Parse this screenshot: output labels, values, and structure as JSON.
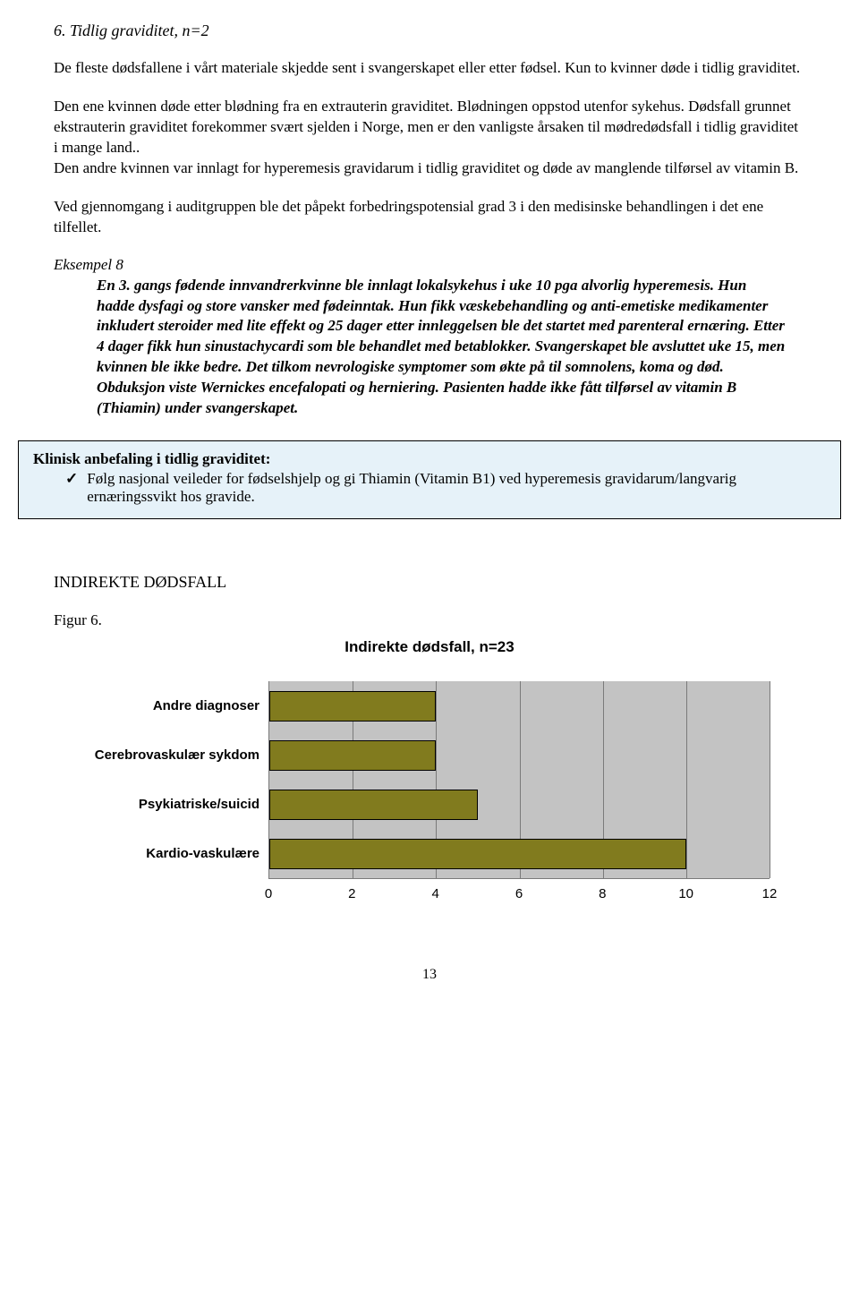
{
  "section_heading": "6. Tidlig graviditet, n=2",
  "para1": "De fleste dødsfallene i vårt materiale skjedde sent i svangerskapet eller etter fødsel. Kun to kvinner døde i tidlig graviditet.",
  "para2": "Den ene kvinnen døde etter blødning fra en extrauterin graviditet. Blødningen oppstod utenfor sykehus. Dødsfall grunnet ekstrauterin graviditet forekommer svært sjelden i Norge, men er den vanligste årsaken til mødredødsfall i tidlig graviditet i mange land..",
  "para3": "Den andre kvinnen var innlagt for hyperemesis gravidarum i tidlig graviditet og døde av manglende tilførsel av vitamin B.",
  "para4": "Ved gjennomgang i auditgruppen ble det påpekt forbedringspotensial grad 3 i den medisinske behandlingen i det ene tilfellet.",
  "example": {
    "label": "Eksempel 8",
    "body": "En 3. gangs fødende innvandrerkvinne ble innlagt lokalsykehus i uke 10 pga alvorlig hyperemesis. Hun hadde dysfagi og store vansker med fødeinntak. Hun fikk væskebehandling og anti-emetiske medikamenter inkludert steroider med lite effekt og 25 dager etter innleggelsen ble det startet med parenteral ernæring. Etter 4 dager fikk hun sinustachycardi som ble behandlet med betablokker. Svangerskapet ble avsluttet uke 15, men kvinnen ble ikke bedre. Det tilkom nevrologiske symptomer som økte på til somnolens, koma og død. Obduksjon viste Wernickes encefalopati og herniering. Pasienten hadde ikke fått tilførsel av vitamin B (Thiamin) under svangerskapet."
  },
  "recommendation": {
    "title": "Klinisk anbefaling i tidlig graviditet:",
    "item": "Følg nasjonal veileder for fødselshjelp og gi Thiamin (Vitamin B1) ved hyperemesis gravidarum/langvarig ernæringssvikt hos gravide."
  },
  "subheader": "INDIREKTE DØDSFALL",
  "fig_label": "Figur 6.",
  "chart": {
    "type": "bar-horizontal",
    "title": "Indirekte dødsfall, n=23",
    "categories": [
      "Andre diagnoser",
      "Cerebrovaskulær sykdom",
      "Psykiatriske/suicid",
      "Kardio-vaskulære"
    ],
    "values": [
      4,
      4,
      5,
      10
    ],
    "xlim": [
      0,
      12
    ],
    "xtick_step": 2,
    "xticks": [
      0,
      2,
      4,
      6,
      8,
      10,
      12
    ],
    "bar_color": "#817b1e",
    "bar_border_color": "#000000",
    "plot_background": "#c3c3c3",
    "grid_color": "#7a7a7a",
    "label_font": "Arial",
    "label_fontsize": 15,
    "label_fontweight": "bold",
    "title_fontsize": 17
  },
  "page_number": "13"
}
